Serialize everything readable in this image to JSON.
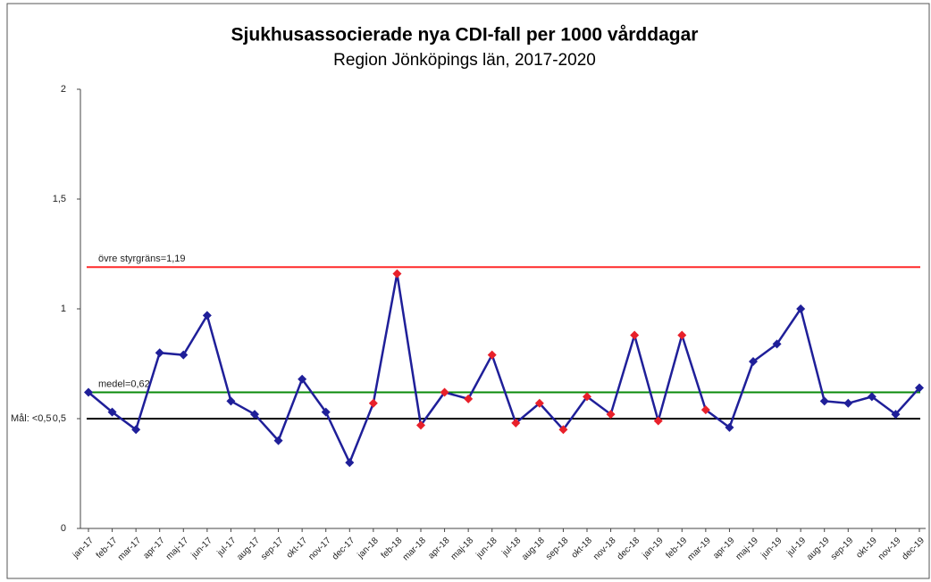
{
  "chart_data": {
    "type": "line",
    "title": "Sjukhusassocierade nya CDI-fall per 1000 vårddagar",
    "subtitle": "Region Jönköpings län, 2017-2020",
    "categories": [
      "jan-17",
      "feb-17",
      "mar-17",
      "apr-17",
      "maj-17",
      "jun-17",
      "jul-17",
      "aug-17",
      "sep-17",
      "okt-17",
      "nov-17",
      "dec-17",
      "jan-18",
      "feb-18",
      "mar-18",
      "apr-18",
      "maj-18",
      "jun-18",
      "jul-18",
      "aug-18",
      "sep-18",
      "okt-18",
      "nov-18",
      "dec-18",
      "jan-19",
      "feb-19",
      "mar-19",
      "apr-19",
      "maj-19",
      "jun-19",
      "jul-19",
      "aug-19",
      "sep-19",
      "okt-19",
      "nov-19",
      "dec-19"
    ],
    "values": [
      0.62,
      0.53,
      0.45,
      0.8,
      0.79,
      0.97,
      0.58,
      0.52,
      0.4,
      0.68,
      0.53,
      0.3,
      0.57,
      1.16,
      0.47,
      0.62,
      0.59,
      0.79,
      0.48,
      0.57,
      0.45,
      0.6,
      0.52,
      0.88,
      0.49,
      0.88,
      0.54,
      0.46,
      0.76,
      0.84,
      1.0,
      0.58,
      0.57,
      0.6,
      0.52,
      0.64
    ],
    "color": "#1f1f99",
    "point_colors": [
      "#1f1f99",
      "#1f1f99",
      "#1f1f99",
      "#1f1f99",
      "#1f1f99",
      "#1f1f99",
      "#1f1f99",
      "#1f1f99",
      "#1f1f99",
      "#1f1f99",
      "#1f1f99",
      "#1f1f99",
      "#e8202a",
      "#e8202a",
      "#e8202a",
      "#e8202a",
      "#e8202a",
      "#e8202a",
      "#e8202a",
      "#e8202a",
      "#e8202a",
      "#e8202a",
      "#e8202a",
      "#e8202a",
      "#e8202a",
      "#e8202a",
      "#e8202a",
      "#1f1f99",
      "#1f1f99",
      "#1f1f99",
      "#1f1f99",
      "#1f1f99",
      "#1f1f99",
      "#1f1f99",
      "#1f1f99",
      "#1f1f99"
    ],
    "reference_lines": [
      {
        "label": "övre styrgräns=1,19",
        "value": 1.19,
        "color": "#ff2a2a"
      },
      {
        "label": "medel=0,62",
        "value": 0.62,
        "color": "#0a8a0a"
      },
      {
        "label": "Mål: <0,5",
        "value": 0.5,
        "color": "#000000"
      }
    ],
    "ylim": [
      0,
      2
    ],
    "yticks": [
      0,
      {
        "value": 0.5,
        "label": "0,5"
      },
      1,
      {
        "value": 1.5,
        "label": "1,5"
      },
      2
    ]
  }
}
